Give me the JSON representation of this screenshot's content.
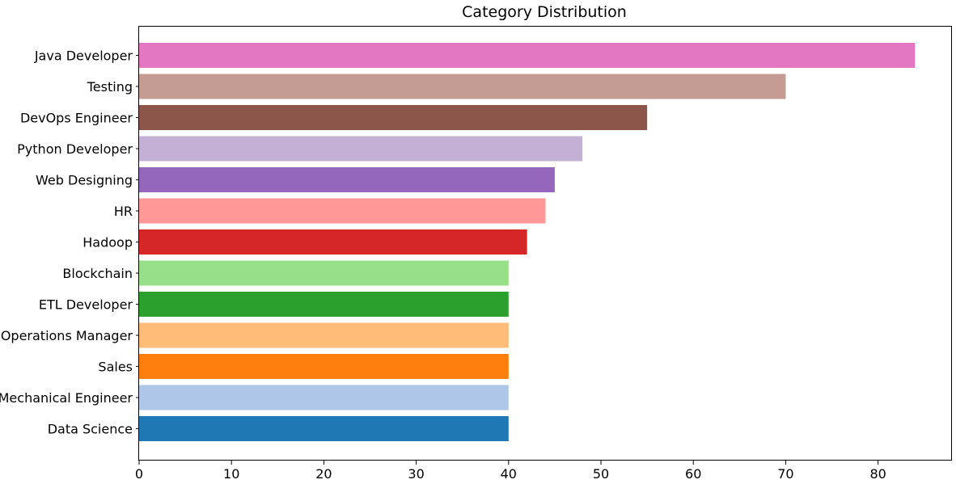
{
  "chart_data": {
    "type": "bar",
    "orientation": "horizontal",
    "title": "Category Distribution",
    "xlabel": "",
    "ylabel": "",
    "xlim": [
      0,
      88
    ],
    "xticks": [
      0,
      10,
      20,
      30,
      40,
      50,
      60,
      70,
      80
    ],
    "grid": false,
    "categories": [
      "Data Science",
      "Mechanical Engineer",
      "Sales",
      "Operations Manager",
      "ETL Developer",
      "Blockchain",
      "Hadoop",
      "HR",
      "Web Designing",
      "Python Developer",
      "DevOps Engineer",
      "Testing",
      "Java Developer"
    ],
    "values": [
      40,
      40,
      40,
      40,
      40,
      40,
      42,
      44,
      45,
      48,
      55,
      70,
      84
    ],
    "colors": [
      "#1f77b4",
      "#aec7e8",
      "#ff7f0e",
      "#ffbb78",
      "#2ca02c",
      "#98df8a",
      "#d62728",
      "#ff9896",
      "#9467bd",
      "#c5b0d5",
      "#8c564b",
      "#c49c94",
      "#e377c2"
    ]
  }
}
